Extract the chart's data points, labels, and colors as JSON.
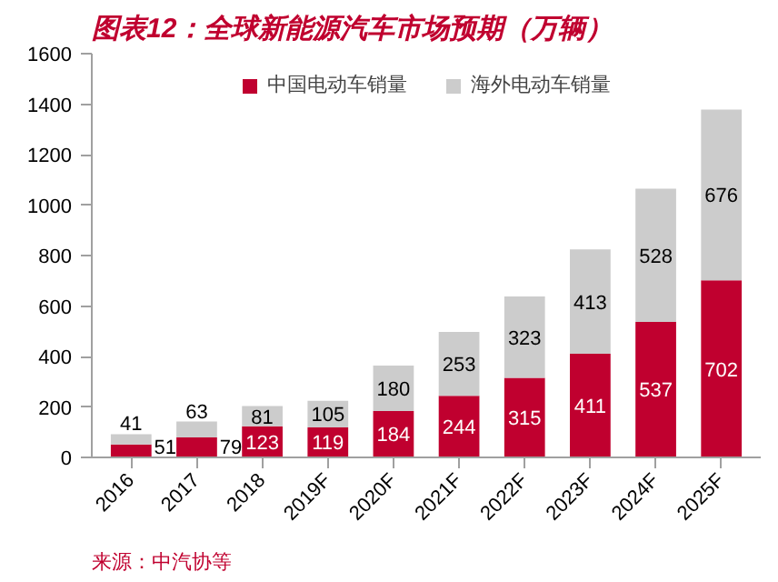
{
  "chart_data": {
    "type": "bar",
    "stacked": true,
    "title": "图表12：全球新能源汽车市场预期（万辆）",
    "categories": [
      "2016",
      "2017",
      "2018",
      "2019F",
      "2020F",
      "2021F",
      "2022F",
      "2023F",
      "2024F",
      "2025F"
    ],
    "series": [
      {
        "name": "中国电动车销量",
        "color": "#c0002f",
        "values": [
          51,
          79,
          123,
          119,
          184,
          244,
          315,
          411,
          537,
          702
        ]
      },
      {
        "name": "海外电动车销量",
        "color": "#cccccc",
        "values": [
          41,
          63,
          81,
          105,
          180,
          253,
          323,
          413,
          528,
          676
        ]
      }
    ],
    "ylim": [
      0,
      1600
    ],
    "yticks": [
      0,
      200,
      400,
      600,
      800,
      1000,
      1200,
      1400,
      1600
    ],
    "data_labels": true,
    "grid": false,
    "legend": "top",
    "annotations": [
      "来源：中汽协等"
    ]
  }
}
